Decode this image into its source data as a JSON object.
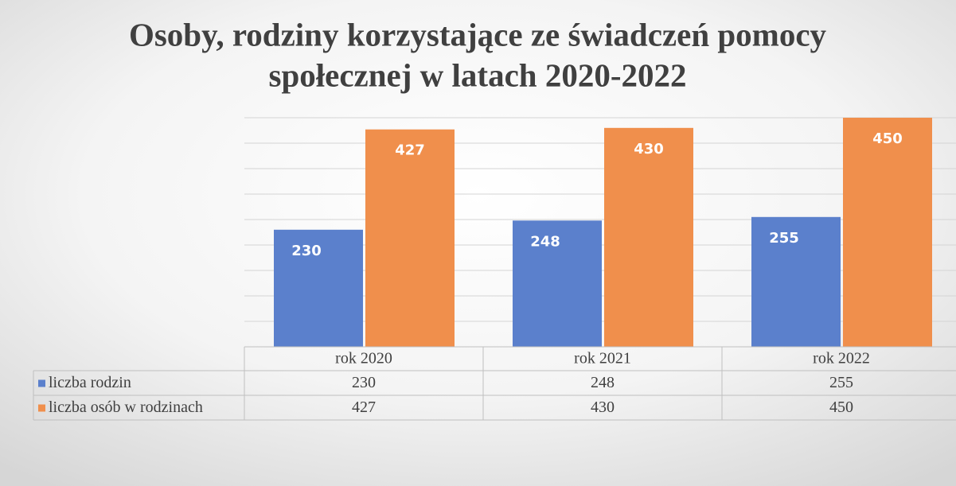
{
  "chart_data": {
    "type": "bar",
    "title": "Osoby, rodziny korzystające ze świadczeń pomocy",
    "subtitle": "społecznej w latach 2020-2022",
    "categories": [
      "rok 2020",
      "rok 2021",
      "rok 2022"
    ],
    "series": [
      {
        "name": "liczba rodzin",
        "color": "#5b80cc",
        "values": [
          230,
          248,
          255
        ]
      },
      {
        "name": "liczba osób w rodzinach",
        "color": "#f08f4c",
        "values": [
          427,
          430,
          450
        ]
      }
    ],
    "ylim": [
      0,
      450
    ],
    "yticks": [
      0,
      50,
      100,
      150,
      200,
      250,
      300,
      350,
      400,
      450
    ],
    "grid": true
  }
}
